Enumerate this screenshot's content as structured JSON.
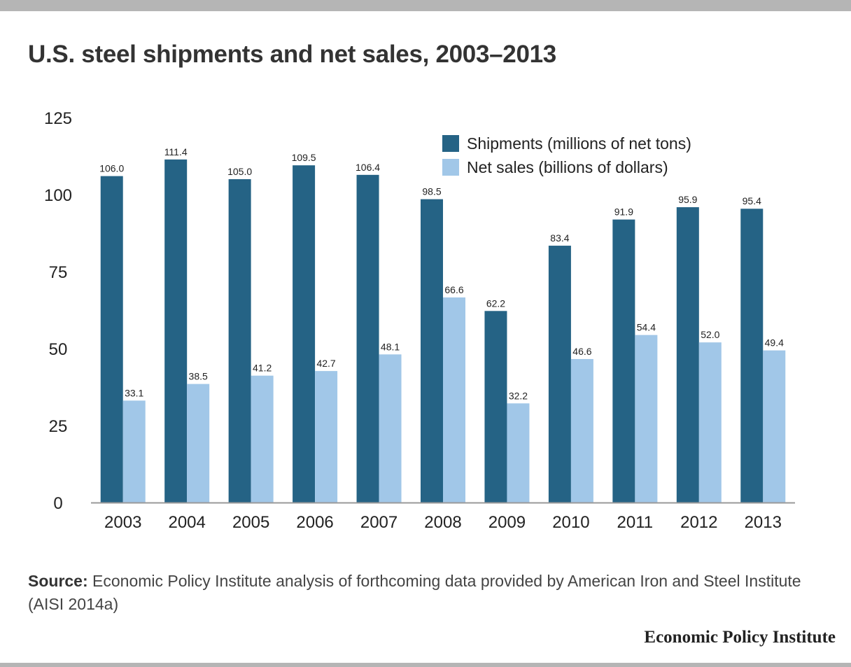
{
  "header": {
    "title": "U.S. steel shipments and net sales, 2003–2013"
  },
  "chart_data": {
    "type": "bar",
    "categories": [
      "2003",
      "2004",
      "2005",
      "2006",
      "2007",
      "2008",
      "2009",
      "2010",
      "2011",
      "2012",
      "2013"
    ],
    "series": [
      {
        "name": "Shipments (millions of net tons)",
        "color": "#256385",
        "values": [
          106.0,
          111.4,
          105.0,
          109.5,
          106.4,
          98.5,
          62.2,
          83.4,
          91.9,
          95.9,
          95.4
        ],
        "labels": [
          "106.0",
          "111.4",
          "105.0",
          "109.5",
          "106.4",
          "98.5",
          "62.2",
          "83.4",
          "91.9",
          "95.9",
          "95.4"
        ]
      },
      {
        "name": "Net sales (billions of dollars)",
        "color": "#a1c7e8",
        "values": [
          33.1,
          38.5,
          41.2,
          42.7,
          48.1,
          66.6,
          32.2,
          46.6,
          54.4,
          52.0,
          49.4
        ],
        "labels": [
          "33.1",
          "38.5",
          "41.2",
          "42.7",
          "48.1",
          "66.6",
          "32.2",
          "46.6",
          "54.4",
          "52.0",
          "49.4"
        ]
      }
    ],
    "yticks": [
      0,
      25,
      50,
      75,
      100,
      125
    ],
    "ylim": [
      0,
      125
    ],
    "grid": false,
    "legend_position": "top-right"
  },
  "footer": {
    "source_label": "Source:",
    "source_text": " Economic Policy Institute analysis of forthcoming data provided by American Iron and Steel Institute (AISI 2014a)",
    "brand": "Economic Policy Institute"
  }
}
